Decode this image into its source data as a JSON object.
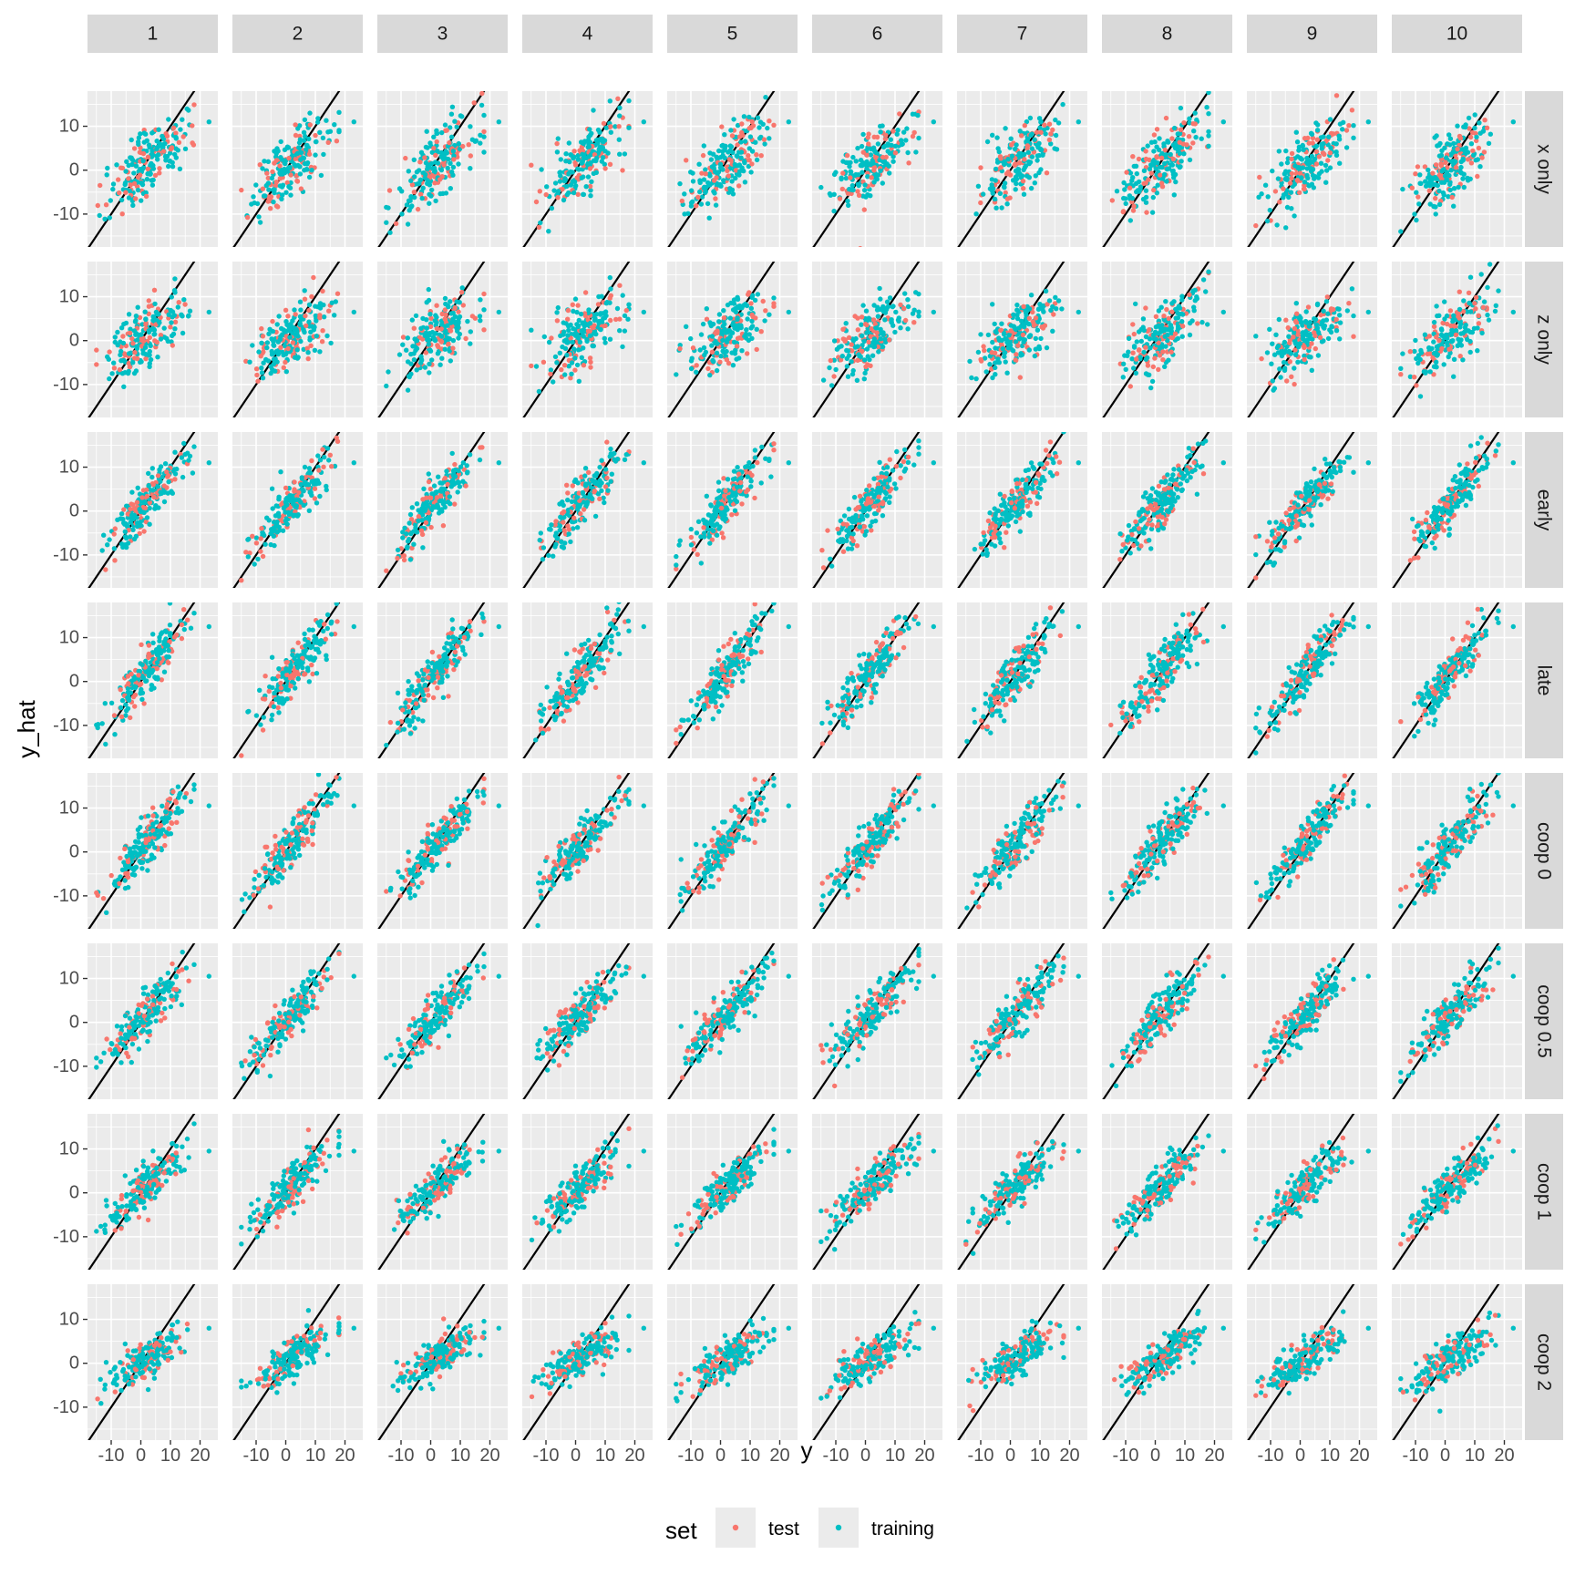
{
  "chart_data": {
    "type": "scatter",
    "facet_columns": [
      "1",
      "2",
      "3",
      "4",
      "5",
      "6",
      "7",
      "8",
      "9",
      "10"
    ],
    "facet_rows": [
      "x only",
      "z only",
      "early",
      "late",
      "coop 0",
      "coop 0.5",
      "coop 1",
      "coop 2"
    ],
    "xlabel": "y",
    "ylabel": "y_hat",
    "xlim": [
      -18,
      26
    ],
    "ylim": [
      -17.5,
      18
    ],
    "x_ticks": [
      -10,
      0,
      10,
      20
    ],
    "x_tick_labels": [
      "-10",
      "0",
      "10",
      "20"
    ],
    "y_ticks": [
      -10,
      0,
      10
    ],
    "y_tick_labels": [
      "-10",
      "0",
      "10"
    ],
    "reference_line": {
      "slope": 1,
      "intercept": 0
    },
    "grid": true,
    "legend": {
      "title": "set",
      "position": "bottom",
      "entries": [
        {
          "label": "test",
          "color": "#F8766D"
        },
        {
          "label": "training",
          "color": "#00BFC4"
        }
      ]
    },
    "series": [
      {
        "name": "test",
        "color": "#F8766D",
        "n_points_per_panel": 60
      },
      {
        "name": "training",
        "color": "#00BFC4",
        "n_points_per_panel": 140
      }
    ],
    "row_fit": [
      {
        "slope": 0.55,
        "noise": 3.6
      },
      {
        "slope": 0.45,
        "noise": 3.5
      },
      {
        "slope": 0.78,
        "noise": 2.6
      },
      {
        "slope": 0.83,
        "noise": 2.8
      },
      {
        "slope": 0.78,
        "noise": 2.6
      },
      {
        "slope": 0.72,
        "noise": 2.6
      },
      {
        "slope": 0.62,
        "noise": 2.4
      },
      {
        "slope": 0.42,
        "noise": 2.2
      }
    ],
    "y_spread": {
      "mean": 2,
      "sd": 6.5,
      "min": -15,
      "max": 18
    },
    "outlier": {
      "x": 23,
      "y_by_row": [
        11,
        6.5,
        11,
        12.5,
        10.5,
        10.5,
        9.5,
        8
      ]
    }
  }
}
